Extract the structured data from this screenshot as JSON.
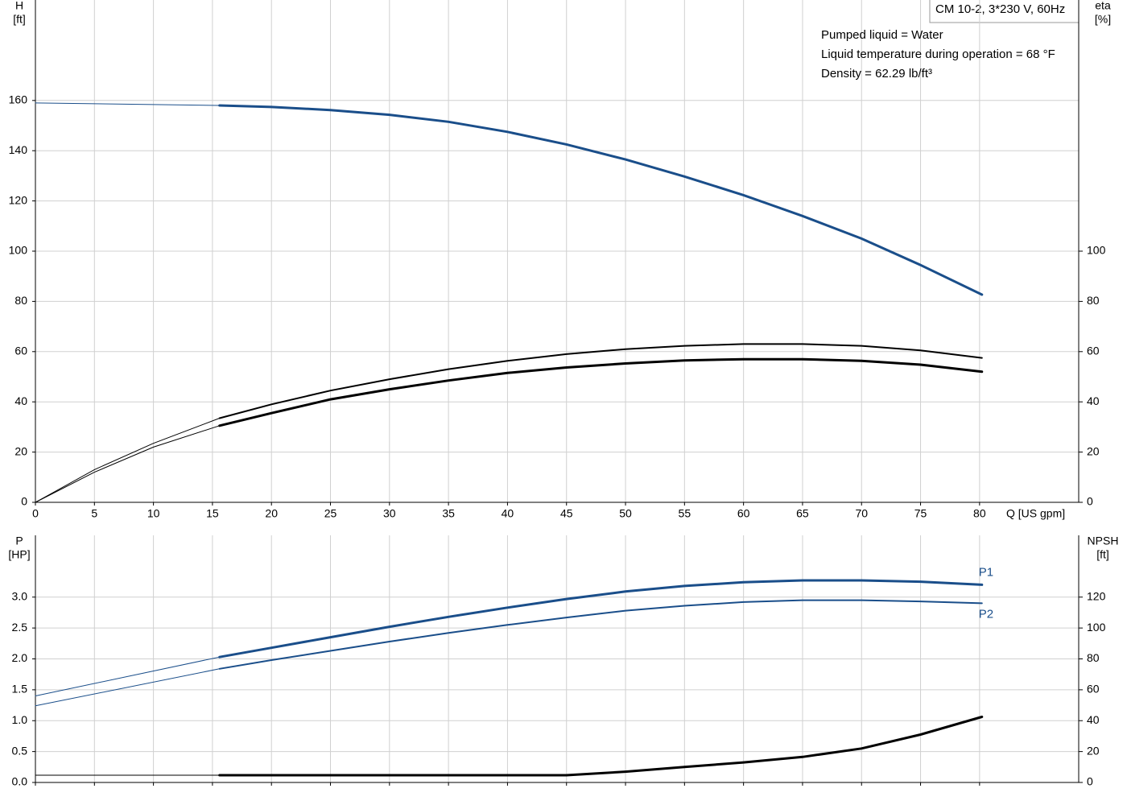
{
  "chart_data": [
    {
      "type": "line",
      "ylabel": "H",
      "ylabel_unit": "[ft]",
      "y2label": "eta",
      "y2label_unit": "[%]",
      "xlabel": "Q [US gpm]",
      "model": "CM 10-2, 3*230 V, 60Hz",
      "annotations": [
        "Pumped liquid = Water",
        "Liquid temperature during operation = 68 °F",
        "Density = 62.29 lb/ft³"
      ],
      "xlim": [
        0,
        88.4
      ],
      "xticks": [
        0,
        5,
        10,
        15,
        20,
        25,
        30,
        35,
        40,
        45,
        50,
        55,
        60,
        65,
        70,
        75,
        80
      ],
      "ylim": [
        0,
        200
      ],
      "yticks": [
        0,
        20,
        40,
        60,
        80,
        100,
        120,
        140,
        160
      ],
      "y2lim": [
        0,
        200
      ],
      "y2ticks": [
        0,
        20,
        40,
        60,
        80,
        100
      ],
      "grid": true,
      "series": [
        {
          "color": "#1a4e8a",
          "width": 1,
          "x": [
            0,
            15.6
          ],
          "values": [
            159,
            158
          ]
        },
        {
          "color": "#1a4e8a",
          "width": 3,
          "x": [
            15.6,
            20,
            25,
            30,
            35,
            40,
            45,
            50,
            55,
            60,
            65,
            70,
            75,
            80.2
          ],
          "values": [
            158,
            157.4,
            156.2,
            154.3,
            151.5,
            147.5,
            142.5,
            136.5,
            129.7,
            122.3,
            114,
            105,
            94.5,
            82.7
          ]
        },
        {
          "color": "#000000",
          "width": 1,
          "axis": "y2",
          "x": [
            0,
            5,
            10,
            15.6
          ],
          "values": [
            0,
            13,
            23.5,
            33.5
          ]
        },
        {
          "color": "#000000",
          "width": 2,
          "axis": "y2",
          "x": [
            15.6,
            20,
            25,
            30,
            35,
            40,
            45,
            50,
            55,
            60,
            65,
            70,
            75,
            80.2
          ],
          "values": [
            33.5,
            39,
            44.5,
            49,
            53,
            56.3,
            59,
            61,
            62.3,
            63,
            63,
            62.3,
            60.5,
            57.5
          ]
        },
        {
          "color": "#000000",
          "width": 1,
          "axis": "y2",
          "x": [
            0,
            5,
            10,
            15.6
          ],
          "values": [
            0,
            12,
            22,
            30.5
          ]
        },
        {
          "color": "#000000",
          "width": 3,
          "axis": "y2",
          "x": [
            15.6,
            20,
            25,
            30,
            35,
            40,
            45,
            50,
            55,
            60,
            65,
            70,
            75,
            80.2
          ],
          "values": [
            30.5,
            35.5,
            41,
            45,
            48.5,
            51.5,
            53.7,
            55.3,
            56.5,
            57,
            57,
            56.3,
            54.8,
            52
          ]
        }
      ]
    },
    {
      "type": "line",
      "ylabel": "P",
      "ylabel_unit": "[HP]",
      "y2label": "NPSH",
      "y2label_unit": "[ft]",
      "xlim": [
        0,
        88.4
      ],
      "ylim": [
        0,
        4
      ],
      "yticks": [
        {
          "value": 0,
          "label": "0.0"
        },
        0.5,
        {
          "value": 1,
          "label": "1.0"
        },
        1.5,
        {
          "value": 2,
          "label": "2.0"
        },
        2.5,
        {
          "value": 3,
          "label": "3.0"
        }
      ],
      "y2lim": [
        0,
        160
      ],
      "y2ticks": [
        0,
        20,
        40,
        60,
        80,
        100,
        120
      ],
      "grid": true,
      "series": [
        {
          "color": "#1a4e8a",
          "width": 1,
          "x": [
            0,
            15.6
          ],
          "values": [
            1.4,
            2.03
          ]
        },
        {
          "name": "P1",
          "color": "#1a4e8a",
          "width": 3,
          "x": [
            15.6,
            20,
            25,
            30,
            35,
            40,
            45,
            50,
            55,
            60,
            65,
            70,
            75,
            80.2
          ],
          "values": [
            2.03,
            2.18,
            2.35,
            2.52,
            2.68,
            2.83,
            2.97,
            3.09,
            3.18,
            3.24,
            3.27,
            3.27,
            3.25,
            3.2
          ]
        },
        {
          "color": "#1a4e8a",
          "width": 1,
          "x": [
            0,
            15.6
          ],
          "values": [
            1.24,
            1.84
          ]
        },
        {
          "name": "P2",
          "color": "#1a4e8a",
          "width": 2,
          "x": [
            15.6,
            20,
            25,
            30,
            35,
            40,
            45,
            50,
            55,
            60,
            65,
            70,
            75,
            80.2
          ],
          "values": [
            1.84,
            1.98,
            2.13,
            2.28,
            2.42,
            2.55,
            2.67,
            2.78,
            2.86,
            2.92,
            2.95,
            2.95,
            2.93,
            2.9
          ]
        },
        {
          "color": "#000000",
          "width": 1,
          "axis": "y2",
          "x": [
            0,
            15.6
          ],
          "values": [
            4.7,
            4.7
          ]
        },
        {
          "color": "#000000",
          "width": 3,
          "axis": "y2",
          "x": [
            15.6,
            30,
            45,
            50,
            55,
            60,
            65,
            70,
            75,
            80.2
          ],
          "values": [
            4.7,
            4.7,
            4.7,
            7,
            10,
            13,
            16.5,
            22,
            31,
            42.5
          ]
        }
      ]
    }
  ]
}
